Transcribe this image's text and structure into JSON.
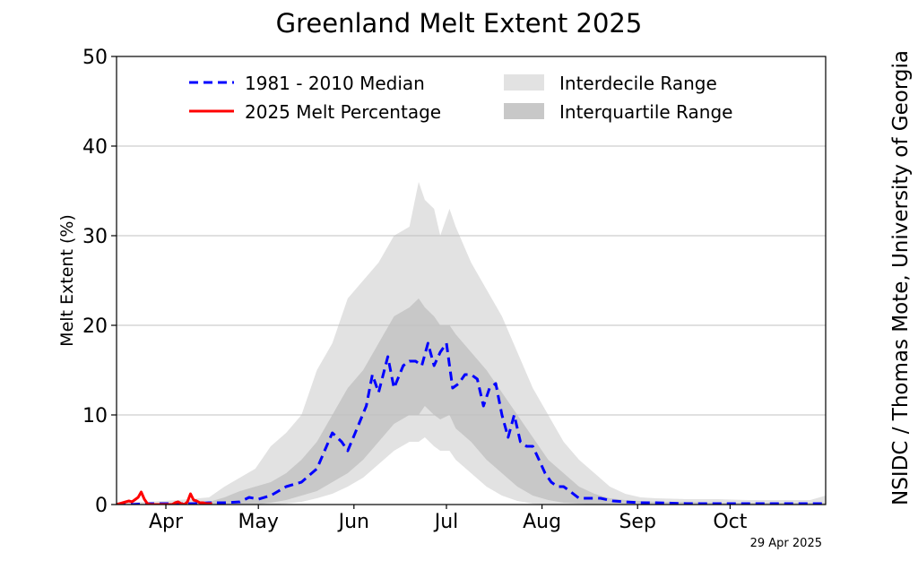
{
  "chart_data": {
    "type": "line",
    "title": "Greenland Melt Extent 2025",
    "ylabel": "Melt Extent (%)",
    "xlabel": "",
    "ylim": [
      0,
      50
    ],
    "yticks": [
      0,
      10,
      20,
      30,
      40,
      50
    ],
    "x_unit": "day of year",
    "xlim": [
      75,
      305
    ],
    "month_labels": [
      "Apr",
      "May",
      "Jun",
      "Jul",
      "Aug",
      "Sep",
      "Oct"
    ],
    "month_label_days": [
      91,
      121,
      152,
      182,
      213,
      244,
      274
    ],
    "grid": "horizontal",
    "legend_placement": "top",
    "legend": [
      "1981 - 2010 Median",
      "2025 Melt Percentage",
      "Interdecile Range",
      "Interquartile Range"
    ],
    "colors": {
      "median": "#0000ff",
      "current": "#ff0000",
      "interdecile": "#e2e2e2",
      "interquartile": "#c8c8c8",
      "grid": "#c0c0c0"
    },
    "series": [
      {
        "name": "1981 - 2010 Median",
        "style": "dashed",
        "x": [
          75,
          80,
          85,
          90,
          95,
          100,
          105,
          110,
          115,
          118,
          121,
          125,
          130,
          135,
          140,
          145,
          148,
          150,
          153,
          156,
          158,
          160,
          163,
          165,
          168,
          170,
          172,
          174,
          176,
          178,
          180,
          182,
          184,
          186,
          188,
          190,
          192,
          194,
          196,
          198,
          200,
          202,
          204,
          206,
          208,
          210,
          212,
          214,
          216,
          218,
          220,
          222,
          225,
          228,
          232,
          236,
          240,
          245,
          250,
          255,
          260,
          270,
          280,
          290,
          300,
          305
        ],
        "y": [
          0,
          0,
          0.1,
          0.1,
          0.1,
          0.1,
          0.2,
          0.2,
          0.3,
          0.8,
          0.6,
          1.0,
          2.0,
          2.5,
          4.0,
          8.0,
          7.0,
          6.0,
          8.5,
          11.0,
          14.5,
          12.5,
          16.5,
          13.0,
          15.5,
          16.0,
          16.0,
          15.5,
          18.0,
          15.5,
          17.0,
          18.0,
          13.0,
          13.5,
          14.5,
          14.5,
          14.0,
          11.0,
          13.0,
          13.5,
          10.0,
          7.5,
          10.0,
          7.0,
          6.5,
          6.5,
          5.0,
          3.5,
          2.5,
          2.0,
          2.0,
          1.5,
          0.7,
          0.7,
          0.7,
          0.4,
          0.3,
          0.2,
          0.2,
          0.15,
          0.1,
          0.1,
          0.1,
          0.1,
          0.1,
          0.1
        ]
      },
      {
        "name": "2025 Melt Percentage",
        "style": "solid",
        "x": [
          75,
          77,
          79,
          80,
          82,
          83,
          84,
          85,
          86,
          88,
          90,
          92,
          93,
          94,
          95,
          96,
          97,
          98,
          99,
          100,
          101,
          102,
          103,
          104,
          105,
          106
        ],
        "y": [
          0,
          0.2,
          0.4,
          0.3,
          0.8,
          1.4,
          0.6,
          0.1,
          0,
          0,
          0,
          0,
          0,
          0.2,
          0.3,
          0.1,
          0,
          0.3,
          1.2,
          0.5,
          0.4,
          0.2,
          0.2,
          0.1,
          0.1,
          0.1
        ]
      },
      {
        "name": "Interdecile Range",
        "style": "band",
        "x": [
          75,
          85,
          95,
          105,
          110,
          115,
          120,
          125,
          130,
          135,
          140,
          145,
          150,
          155,
          160,
          165,
          170,
          173,
          175,
          178,
          180,
          183,
          185,
          190,
          195,
          200,
          205,
          210,
          215,
          220,
          225,
          230,
          235,
          240,
          245,
          250,
          260,
          270,
          280,
          290,
          300,
          305
        ],
        "lower": [
          0,
          0,
          0,
          0,
          0,
          0,
          0,
          0,
          0.1,
          0.3,
          0.7,
          1.2,
          2.0,
          3.0,
          4.5,
          6.0,
          7.0,
          7.0,
          7.5,
          6.5,
          6.0,
          6.0,
          5.0,
          3.5,
          2.0,
          1.0,
          0.4,
          0.1,
          0,
          0,
          0,
          0,
          0,
          0,
          0,
          0,
          0,
          0,
          0,
          0,
          0,
          0
        ],
        "upper": [
          0.3,
          0.3,
          0.5,
          0.8,
          2.0,
          3.0,
          4.0,
          6.5,
          8.0,
          10.0,
          15.0,
          18.0,
          23.0,
          25.0,
          27.0,
          30.0,
          31.0,
          36.0,
          34.0,
          33.0,
          30.0,
          33.0,
          31.0,
          27.0,
          24.0,
          21.0,
          17.0,
          13.0,
          10.0,
          7.0,
          5.0,
          3.5,
          2.0,
          1.2,
          0.8,
          0.7,
          0.6,
          0.6,
          0.5,
          0.5,
          0.5,
          1.0
        ]
      },
      {
        "name": "Interquartile Range",
        "style": "band",
        "x": [
          75,
          85,
          95,
          105,
          110,
          115,
          120,
          125,
          130,
          135,
          140,
          145,
          150,
          155,
          160,
          165,
          170,
          173,
          175,
          178,
          180,
          183,
          185,
          190,
          195,
          200,
          205,
          210,
          215,
          220,
          225,
          230,
          235,
          240,
          250,
          260,
          270,
          280,
          290,
          300,
          305
        ],
        "lower": [
          0,
          0,
          0,
          0,
          0,
          0,
          0,
          0.2,
          0.5,
          1.0,
          1.5,
          2.5,
          3.5,
          5.0,
          7.0,
          9.0,
          10.0,
          10.0,
          11.0,
          10.0,
          9.5,
          10.0,
          8.5,
          7.0,
          5.0,
          3.5,
          2.0,
          1.0,
          0.5,
          0.2,
          0.1,
          0,
          0,
          0,
          0,
          0,
          0,
          0,
          0,
          0,
          0
        ],
        "upper": [
          0.1,
          0.1,
          0.2,
          0.3,
          0.8,
          1.5,
          2.0,
          2.5,
          3.5,
          5.0,
          7.0,
          10.0,
          13.0,
          15.0,
          18.0,
          21.0,
          22.0,
          23.0,
          22.0,
          21.0,
          20.0,
          20.0,
          19.0,
          17.0,
          15.0,
          12.5,
          10.0,
          7.5,
          5.0,
          3.5,
          2.0,
          1.2,
          0.7,
          0.5,
          0.3,
          0.3,
          0.2,
          0.2,
          0.2,
          0.2,
          0.2
        ]
      }
    ]
  },
  "credit": "NSIDC / Thomas Mote, University of Georgia",
  "date_label": "29 Apr 2025"
}
